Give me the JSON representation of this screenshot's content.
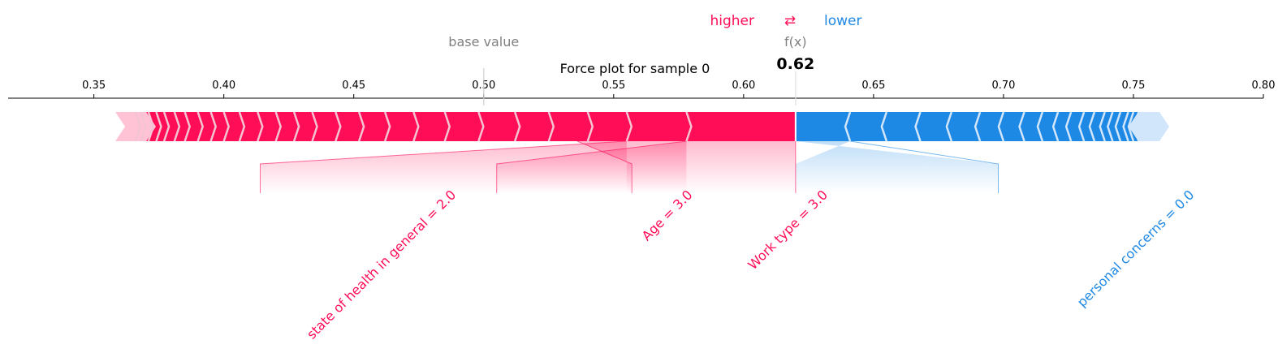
{
  "chart_data": {
    "type": "force",
    "title": "Force plot for sample 0",
    "base_value": 0.5,
    "output_value": 0.62,
    "output_value_label": "0.62",
    "base_value_label": "base value",
    "output_label": "f(x)",
    "legend": {
      "higher": "higher",
      "arrows": "⇄",
      "lower": "lower"
    },
    "xlim": [
      0.317,
      0.8
    ],
    "ticks": [
      {
        "value": 0.35,
        "label": "0.35"
      },
      {
        "value": 0.4,
        "label": "0.40"
      },
      {
        "value": 0.45,
        "label": "0.45"
      },
      {
        "value": 0.5,
        "label": "0.50"
      },
      {
        "value": 0.55,
        "label": "0.55"
      },
      {
        "value": 0.6,
        "label": "0.60"
      },
      {
        "value": 0.65,
        "label": "0.65"
      },
      {
        "value": 0.7,
        "label": "0.70"
      },
      {
        "value": 0.75,
        "label": "0.75"
      },
      {
        "value": 0.8,
        "label": "0.80"
      }
    ],
    "positive_range": [
      0.362,
      0.62
    ],
    "negative_range": [
      0.62,
      0.76
    ],
    "positive_chevrons": [
      0.578,
      0.555,
      0.54,
      0.525,
      0.512,
      0.498,
      0.485,
      0.473,
      0.462,
      0.452,
      0.443,
      0.434,
      0.427,
      0.42,
      0.413,
      0.406,
      0.4,
      0.395,
      0.39,
      0.385,
      0.381,
      0.377,
      0.374,
      0.371,
      0.368,
      0.366
    ],
    "negative_chevrons": [
      0.641,
      0.655,
      0.668,
      0.68,
      0.691,
      0.7,
      0.708,
      0.715,
      0.721,
      0.726,
      0.731,
      0.735,
      0.739,
      0.742,
      0.745,
      0.748,
      0.75,
      0.752,
      0.754
    ],
    "features": [
      {
        "label": "state of health in general = 2.0",
        "direction": "positive",
        "start": 0.555,
        "end": 0.578,
        "label_at": 0.414
      },
      {
        "label": "Age = 3.0",
        "direction": "positive",
        "start": 0.578,
        "end": 0.62,
        "label_at": 0.505
      },
      {
        "label": "Work type = 3.0",
        "direction": "positive",
        "start": 0.536,
        "end": 0.555,
        "label_at": 0.557
      },
      {
        "label": "personal concerns = 0.0",
        "direction": "negative",
        "start": 0.62,
        "end": 0.641,
        "label_at": 0.698
      }
    ],
    "colors": {
      "positive": "#ff0d57",
      "negative": "#1e88e5",
      "positive_light": "#ffc3d5",
      "negative_light": "#d1e6fa",
      "base_label": "#808080"
    }
  }
}
